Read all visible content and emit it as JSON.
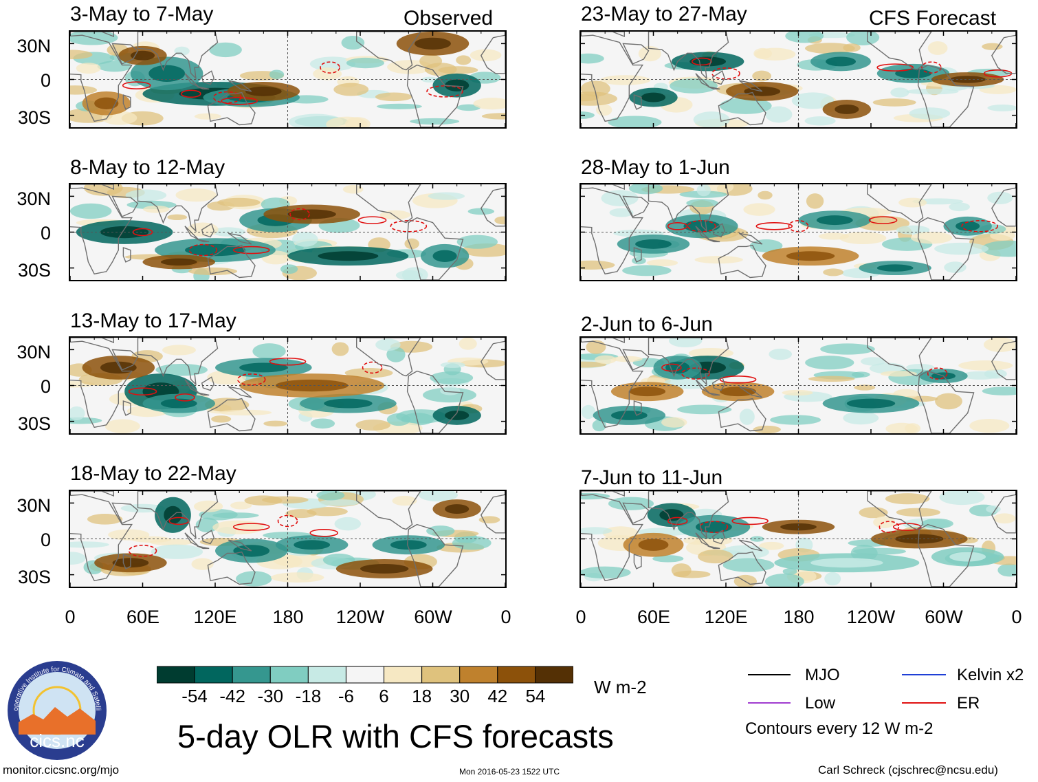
{
  "chart_data": {
    "type": "heatmap",
    "title": "5-day OLR with CFS forecasts",
    "units": "W m-2",
    "xlabel": "",
    "ylabel": "",
    "xlim": [
      0,
      360
    ],
    "ylim": [
      -40,
      40
    ],
    "lat_ticks": [
      "30N",
      "0",
      "30S"
    ],
    "lon_ticks": [
      "0",
      "60E",
      "120E",
      "180",
      "120W",
      "60W",
      "0"
    ],
    "colorbar": {
      "labels": [
        "-54",
        "-42",
        "-30",
        "-18",
        "-6",
        "6",
        "18",
        "30",
        "42",
        "54"
      ],
      "colors": [
        "#003c30",
        "#01665e",
        "#35978f",
        "#80cdc1",
        "#c7eae5",
        "#f5f5f5",
        "#f6e8c3",
        "#dfc27d",
        "#bf812d",
        "#8c510a",
        "#543005"
      ]
    },
    "observed_label": "Observed",
    "forecast_label": "CFS Forecast",
    "observed": [
      {
        "period": "3-May to 7-May"
      },
      {
        "period": "8-May to 12-May"
      },
      {
        "period": "13-May to 17-May"
      },
      {
        "period": "18-May to 22-May"
      }
    ],
    "forecast": [
      {
        "period": "23-May to 27-May"
      },
      {
        "period": "28-May to 1-Jun"
      },
      {
        "period": "2-Jun to 6-Jun"
      },
      {
        "period": "7-Jun to 11-Jun"
      }
    ],
    "contour_legend": [
      {
        "name": "MJO",
        "color": "#000000"
      },
      {
        "name": "Kelvin x2",
        "color": "#1f3fd6"
      },
      {
        "name": "Low",
        "color": "#a03cd0"
      },
      {
        "name": "ER",
        "color": "#e01010"
      }
    ],
    "contour_note": "Contours every 12 W m-2"
  },
  "logo": {
    "text": "cics.nc",
    "ring_text": "Cooperative Institute for Climate and Satellites"
  },
  "footer": {
    "url": "monitor.cicsnc.org/mjo",
    "timestamp": "Mon 2016-05-23 1522 UTC",
    "author": "Carl Schreck (cjschrec@ncsu.edu)"
  }
}
